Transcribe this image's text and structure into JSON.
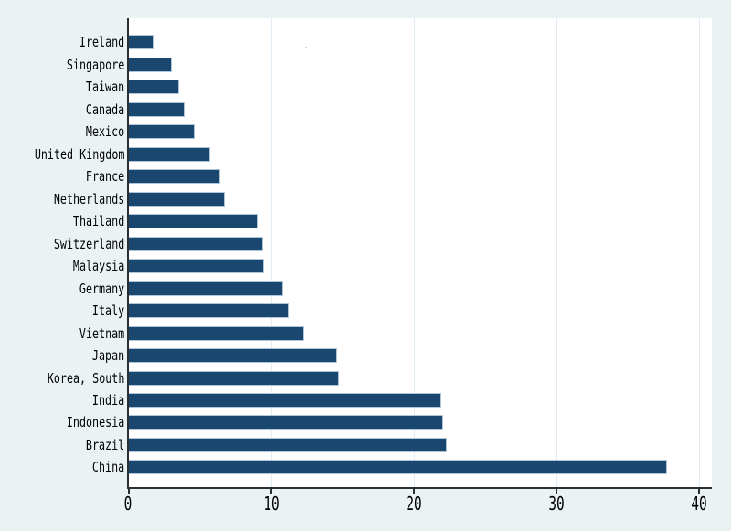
{
  "chart_data": {
    "type": "bar",
    "orientation": "horizontal",
    "title": "",
    "xlabel": "",
    "ylabel": "",
    "categories": [
      "Ireland",
      "Singapore",
      "Taiwan",
      "Canada",
      "Mexico",
      "United Kingdom",
      "France",
      "Netherlands",
      "Thailand",
      "Switzerland",
      "Malaysia",
      "Germany",
      "Italy",
      "Vietnam",
      "Japan",
      "Korea, South",
      "India",
      "Indonesia",
      "Brazil",
      "China"
    ],
    "values": [
      1.7,
      3.0,
      3.5,
      3.9,
      4.6,
      5.7,
      6.4,
      6.7,
      9.0,
      9.4,
      9.5,
      10.8,
      11.2,
      12.3,
      14.6,
      14.7,
      21.9,
      22.0,
      22.3,
      37.7
    ],
    "xlim": [
      0,
      40
    ],
    "xticks": [
      0,
      10,
      20,
      30,
      40
    ],
    "xtick_labels": [
      "0",
      "10",
      "20",
      "30",
      "40"
    ],
    "grid": "vertical-gridlines-at-10-20-30-40",
    "legend": "none",
    "colors": {
      "background": "#eaf2f3",
      "plot_background": "#ffffff",
      "bar_fill": "#1a476f",
      "bar_outline": "#b0c6d8",
      "grid_line": "#e1edf5",
      "axis_line": "#2b2f33",
      "text": "#000000"
    }
  }
}
